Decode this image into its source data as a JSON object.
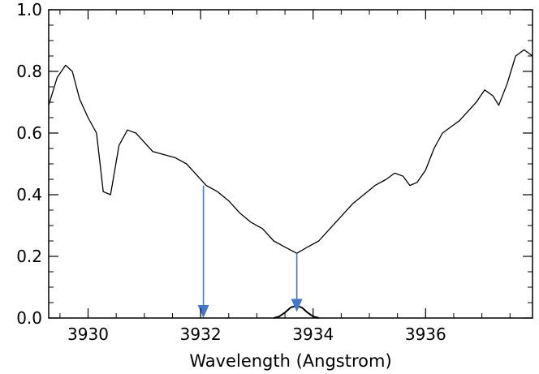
{
  "chart_data": {
    "type": "line",
    "title": "",
    "xlabel": "Wavelength (Angstrom)",
    "ylabel": "",
    "xlim": [
      3929.3,
      3937.9
    ],
    "ylim": [
      0.0,
      1.0
    ],
    "x_ticks": [
      3930,
      3932,
      3934,
      3936
    ],
    "x_tick_labels": [
      "3930",
      "3932",
      "3934",
      "3936"
    ],
    "y_ticks": [
      0.0,
      0.2,
      0.4,
      0.6,
      0.8,
      1.0
    ],
    "y_tick_labels": [
      "0.0",
      "0.2",
      "0.4",
      "0.6",
      "0.8",
      "1.0"
    ],
    "grid": false,
    "series": [
      {
        "color": "#000000",
        "x": [
          3929.3,
          3929.45,
          3929.6,
          3929.72,
          3929.85,
          3930.0,
          3930.15,
          3930.27,
          3930.4,
          3930.55,
          3930.7,
          3930.85,
          3931.0,
          3931.15,
          3931.35,
          3931.55,
          3931.75,
          3931.95,
          3932.1,
          3932.3,
          3932.5,
          3932.7,
          3932.9,
          3933.1,
          3933.3,
          3933.5,
          3933.71,
          3933.9,
          3934.1,
          3934.3,
          3934.5,
          3934.7,
          3934.9,
          3935.1,
          3935.3,
          3935.45,
          3935.6,
          3935.72,
          3935.85,
          3936.0,
          3936.15,
          3936.3,
          3936.45,
          3936.6,
          3936.75,
          3936.9,
          3937.05,
          3937.2,
          3937.3,
          3937.45,
          3937.6,
          3937.75,
          3937.9
        ],
        "y": [
          0.69,
          0.78,
          0.82,
          0.8,
          0.71,
          0.65,
          0.6,
          0.41,
          0.4,
          0.56,
          0.61,
          0.6,
          0.57,
          0.54,
          0.53,
          0.52,
          0.5,
          0.46,
          0.43,
          0.41,
          0.38,
          0.34,
          0.31,
          0.29,
          0.25,
          0.23,
          0.21,
          0.23,
          0.25,
          0.29,
          0.33,
          0.37,
          0.4,
          0.43,
          0.45,
          0.47,
          0.46,
          0.43,
          0.44,
          0.48,
          0.55,
          0.6,
          0.62,
          0.64,
          0.67,
          0.7,
          0.74,
          0.72,
          0.69,
          0.76,
          0.85,
          0.87,
          0.85
        ]
      },
      {
        "color": "#000000",
        "x": [
          3933.3,
          3933.4,
          3933.5,
          3933.6,
          3933.7,
          3933.8,
          3933.9,
          3934.0,
          3934.1
        ],
        "y": [
          0.0,
          0.005,
          0.018,
          0.034,
          0.04,
          0.034,
          0.018,
          0.005,
          0.0
        ]
      }
    ],
    "annotations": [
      {
        "type": "arrow",
        "color": "#4477cc",
        "x": 3932.05,
        "y_from": 0.43,
        "y_to": 0.0
      },
      {
        "type": "arrow",
        "color": "#4477cc",
        "x": 3933.71,
        "y_from": 0.21,
        "y_to": 0.02
      }
    ]
  }
}
